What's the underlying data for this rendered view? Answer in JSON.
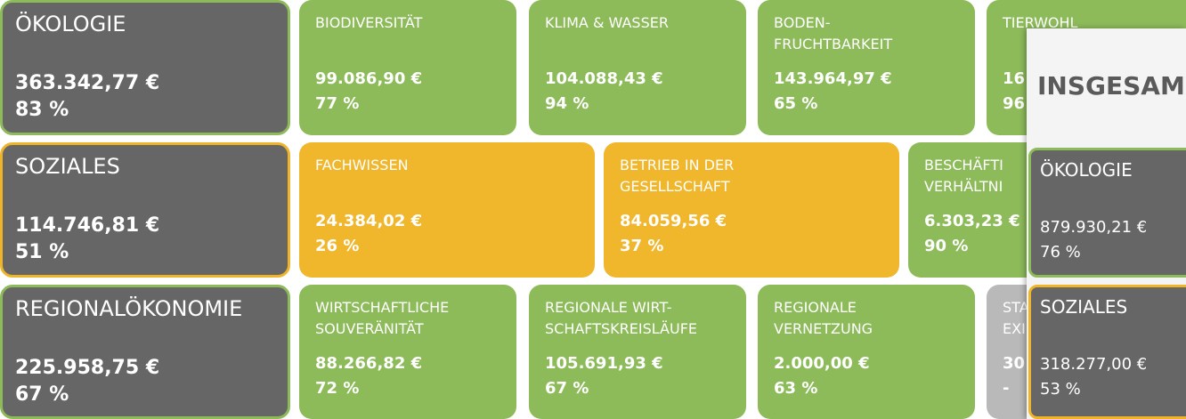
{
  "rows": [
    {
      "category": {
        "label": [
          "ÖKOLOGIE"
        ],
        "amount": "363.342,77 €",
        "percent": "83 %"
      },
      "tiles": [
        {
          "label": [
            "BIODIVERSITÄT"
          ],
          "amount": "99.086,90 €",
          "percent": "77 %"
        },
        {
          "label": [
            "KLIMA & WASSER"
          ],
          "amount": "104.088,43 €",
          "percent": "94 %"
        },
        {
          "label": [
            "BODEN-",
            "FRUCHTBARKEIT"
          ],
          "amount": "143.964,97 €",
          "percent": "65 %"
        },
        {
          "label": [
            "TIERWOHL"
          ],
          "amount": "16",
          "percent": "96"
        }
      ]
    },
    {
      "category": {
        "label": [
          "SOZIALES"
        ],
        "amount": "114.746,81 €",
        "percent": "51 %"
      },
      "tiles": [
        {
          "label": [
            "FACHWISSEN"
          ],
          "amount": "24.384,02 €",
          "percent": "26 %"
        },
        {
          "label": [
            "BETRIEB IN DER",
            "GESELLSCHAFT"
          ],
          "amount": "84.059,56 €",
          "percent": "37 %"
        },
        {
          "label": [
            "BESCHÄFTI",
            "VERHÄLTNI"
          ],
          "amount": "6.303,23 €",
          "percent": "90 %"
        }
      ]
    },
    {
      "category": {
        "label": [
          "REGIONALÖKONOMIE"
        ],
        "amount": "225.958,75 €",
        "percent": "67 %"
      },
      "tiles": [
        {
          "label": [
            "WIRTSCHAFTLICHE",
            "SOUVERÄNITÄT"
          ],
          "amount": "88.266,82 €",
          "percent": "72 %"
        },
        {
          "label": [
            "REGIONALE WIRT-",
            "SCHAFTSKREISLÄUFE"
          ],
          "amount": "105.691,93 €",
          "percent": "67 %"
        },
        {
          "label": [
            "REGIONALE",
            "VERNETZUNG"
          ],
          "amount": "2.000,00 €",
          "percent": "63 %"
        },
        {
          "label": [
            "STA",
            "EXI"
          ],
          "amount": "30",
          "percent": "-"
        }
      ]
    }
  ],
  "summary": {
    "title": "INSGESAM",
    "items": [
      {
        "label": "ÖKOLOGIE",
        "amount": "879.930,21 €",
        "percent": "76 %"
      },
      {
        "label": "SOZIALES",
        "amount": "318.277,00 €",
        "percent": "53 %"
      }
    ]
  }
}
